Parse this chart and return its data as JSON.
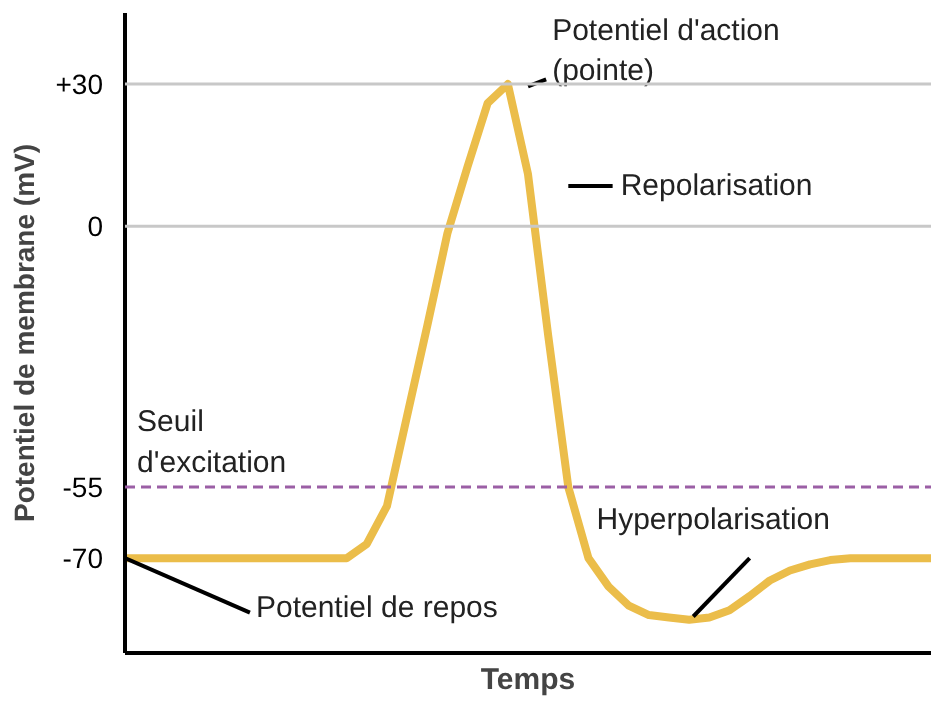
{
  "chart_data": {
    "type": "line",
    "xlabel": "Temps",
    "ylabel": "Potentiel de membrane (mV)",
    "categories": [
      null,
      null,
      null,
      null,
      null,
      null,
      null,
      null,
      null,
      null,
      null,
      null,
      null,
      null,
      null,
      null,
      null,
      null,
      null,
      null,
      null,
      null,
      null,
      null,
      null,
      null,
      null,
      null,
      null,
      null,
      null,
      null,
      null,
      null,
      null,
      null,
      null,
      null,
      null,
      null,
      null
    ],
    "series": [
      {
        "color": "#ebbd4a",
        "values": [
          -70,
          -70,
          -70,
          -70,
          -70,
          -70,
          -70,
          -70,
          -70,
          -70,
          -70,
          -70,
          -67,
          -59,
          -40,
          -21,
          -1.5,
          12.6,
          26,
          30,
          11,
          -23,
          -55,
          -70,
          -76,
          -80,
          -82,
          -82.5,
          -83,
          -82.5,
          -81,
          -78,
          -74.7,
          -72.6,
          -71.3,
          -70.4,
          -70,
          -70,
          -70,
          -70,
          -70
        ]
      }
    ],
    "ylim": [
      -90,
      45
    ],
    "yticks": [
      {
        "value": 30,
        "label": "+30"
      },
      0,
      -55,
      -70
    ],
    "ref_lines": [
      {
        "axis": "y",
        "value": 30,
        "label": null,
        "color": "#c8c8c8",
        "line_style": "solid"
      },
      {
        "axis": "y",
        "value": 0,
        "label": null,
        "color": "#c8c8c8",
        "line_style": "solid"
      },
      {
        "axis": "y",
        "value": -55,
        "label": "Seuil\nd'excitation",
        "color": "#9b5fa5",
        "line_style": "dashed"
      }
    ],
    "annotations": [
      "Potentiel d'action\n(pointe)",
      "Repolarisation",
      "Hyperpolarisation",
      "Potentiel de repos"
    ],
    "grid": false,
    "marker": "none",
    "line_style": "solid"
  }
}
